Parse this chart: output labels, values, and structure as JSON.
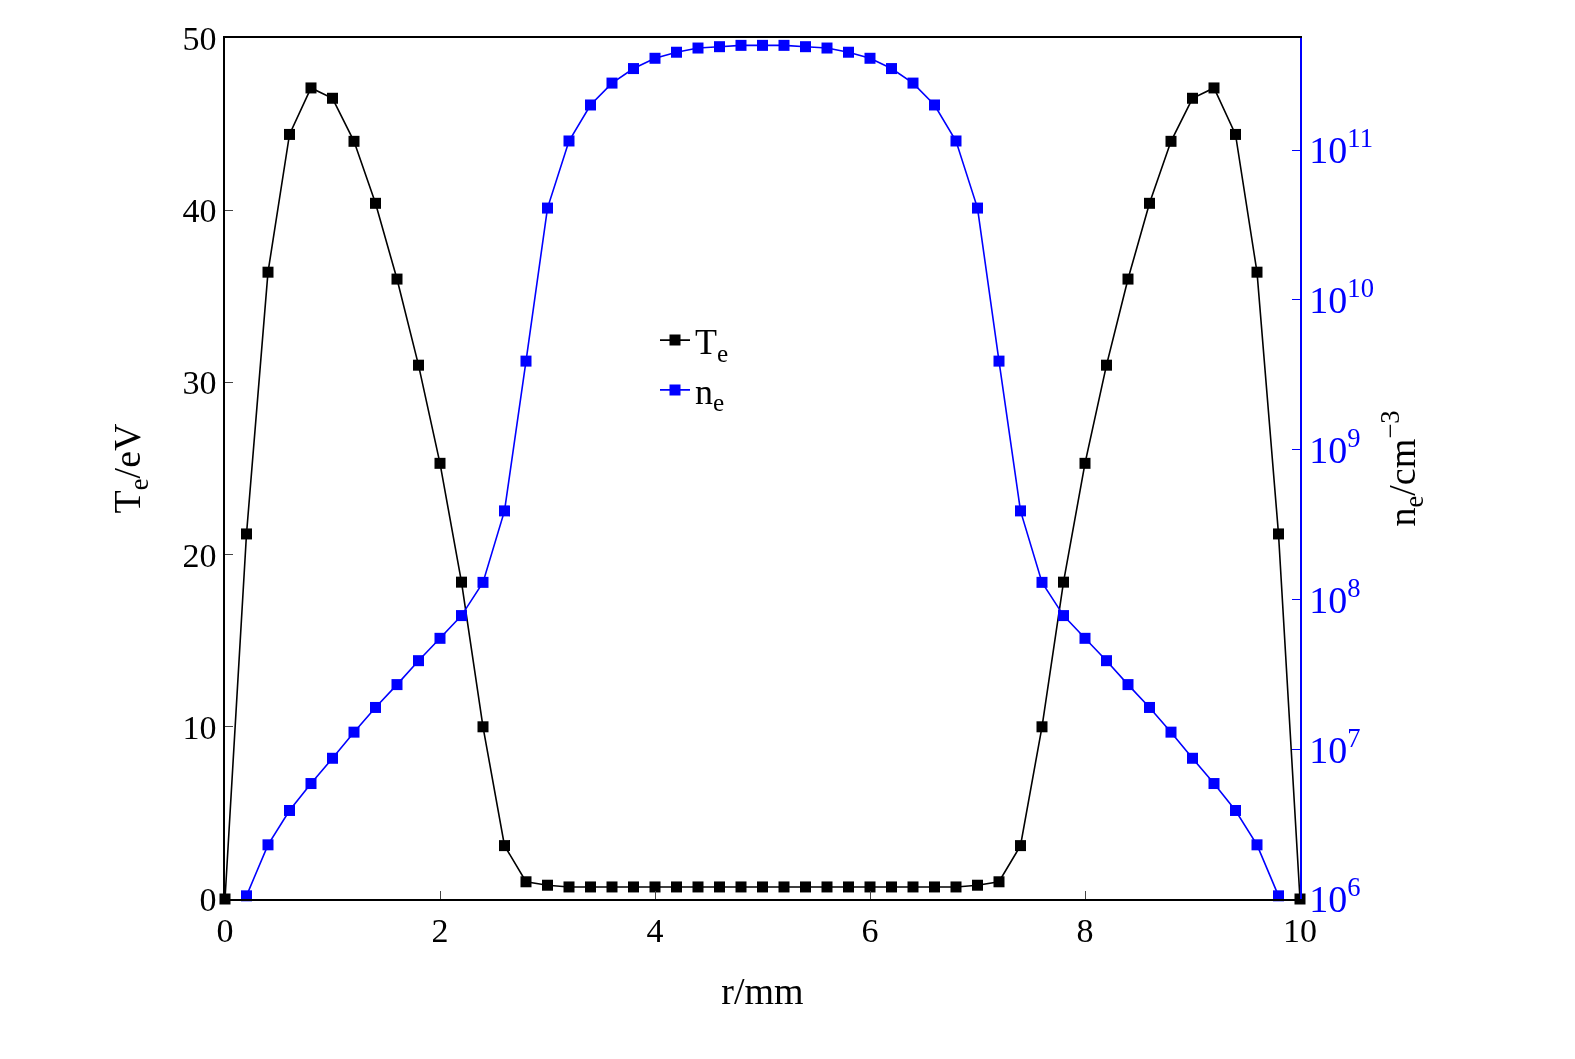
{
  "chart_data": {
    "type": "line",
    "xlabel": "r/mm",
    "ylabel": "T$_{e}$/eV",
    "y2label": "n$_{e}$/cm$^{−3}$",
    "xlim": [
      0,
      10
    ],
    "xticks": [
      0,
      2,
      4,
      6,
      8,
      10
    ],
    "ylim": [
      0,
      50
    ],
    "yticks": [
      0,
      10,
      20,
      30,
      40,
      50
    ],
    "y2lim": [
      1000000,
      560000000000
    ],
    "log": "y2",
    "y2ticks": [
      {
        "value": 1000000,
        "label": "10$^{6}$"
      },
      {
        "value": 10000000,
        "label": "10$^{7}$"
      },
      {
        "value": 100000000,
        "label": "10$^{8}$"
      },
      {
        "value": 1000000000,
        "label": "10$^{9}$"
      },
      {
        "value": 10000000000,
        "label": "10$^{10}$"
      },
      {
        "value": 100000000000,
        "label": "10$^{11}$"
      }
    ],
    "marker": "square",
    "line_style": "solid",
    "legend": "center",
    "series": [
      {
        "name": "T$_{e}$",
        "color": "#000000",
        "x": [
          0,
          0.2,
          0.4,
          0.6,
          0.8,
          1.0,
          1.2,
          1.4,
          1.6,
          1.8,
          2.0,
          2.2,
          2.4,
          2.6,
          2.8,
          3.0,
          3.2,
          3.4,
          3.6,
          3.8,
          4.0,
          4.2,
          4.4,
          4.6,
          4.8,
          5.0,
          5.2,
          5.4,
          5.6,
          5.8,
          6.0,
          6.2,
          6.4,
          6.6,
          6.8,
          7.0,
          7.2,
          7.4,
          7.6,
          7.8,
          8.0,
          8.2,
          8.4,
          8.6,
          8.8,
          9.0,
          9.2,
          9.4,
          9.6,
          9.8,
          10
        ],
        "values": [
          0,
          21.2,
          36.4,
          44.4,
          47.1,
          46.5,
          44.0,
          40.4,
          36.0,
          31.0,
          25.3,
          18.4,
          10.0,
          3.1,
          1.0,
          0.8,
          0.7,
          0.7,
          0.7,
          0.7,
          0.7,
          0.7,
          0.7,
          0.7,
          0.7,
          0.7,
          0.7,
          0.7,
          0.7,
          0.7,
          0.7,
          0.7,
          0.7,
          0.7,
          0.7,
          0.8,
          1.0,
          3.1,
          10.0,
          18.4,
          25.3,
          31.0,
          36.0,
          40.4,
          44.0,
          46.5,
          47.1,
          44.4,
          36.4,
          21.2,
          0
        ]
      },
      {
        "name": "n$_{e}$",
        "color": "#0000ff",
        "axis": "y2",
        "x": [
          0.2,
          0.4,
          0.6,
          0.8,
          1.0,
          1.2,
          1.4,
          1.6,
          1.8,
          2.0,
          2.2,
          2.4,
          2.6,
          2.8,
          3.0,
          3.2,
          3.4,
          3.6,
          3.8,
          4.0,
          4.2,
          4.4,
          4.6,
          4.8,
          5.0,
          5.2,
          5.4,
          5.6,
          5.8,
          6.0,
          6.2,
          6.4,
          6.6,
          6.8,
          7.0,
          7.2,
          7.4,
          7.6,
          7.8,
          8.0,
          8.2,
          8.4,
          8.6,
          8.8,
          9.0,
          9.2,
          9.4,
          9.6,
          9.8
        ],
        "values": [
          1050000.0,
          2300000.0,
          3900000.0,
          5900000.0,
          8700000.0,
          13000000.0,
          19000000.0,
          27000000.0,
          39000000.0,
          55000000.0,
          78000000.0,
          130000000.0,
          390000000.0,
          3900000000.0,
          41000000000.0,
          115000000000.0,
          200000000000.0,
          280000000000.0,
          350000000000.0,
          410000000000.0,
          450000000000.0,
          480000000000.0,
          490000000000.0,
          500000000000.0,
          500000000000.0,
          500000000000.0,
          490000000000.0,
          480000000000.0,
          450000000000.0,
          410000000000.0,
          350000000000.0,
          280000000000.0,
          200000000000.0,
          115000000000.0,
          41000000000.0,
          3900000000.0,
          390000000.0,
          130000000.0,
          78000000.0,
          55000000.0,
          39000000.0,
          27000000.0,
          19000000.0,
          13000000.0,
          8700000.0,
          5900000.0,
          3900000.0,
          2300000.0,
          1050000.0
        ]
      }
    ]
  }
}
